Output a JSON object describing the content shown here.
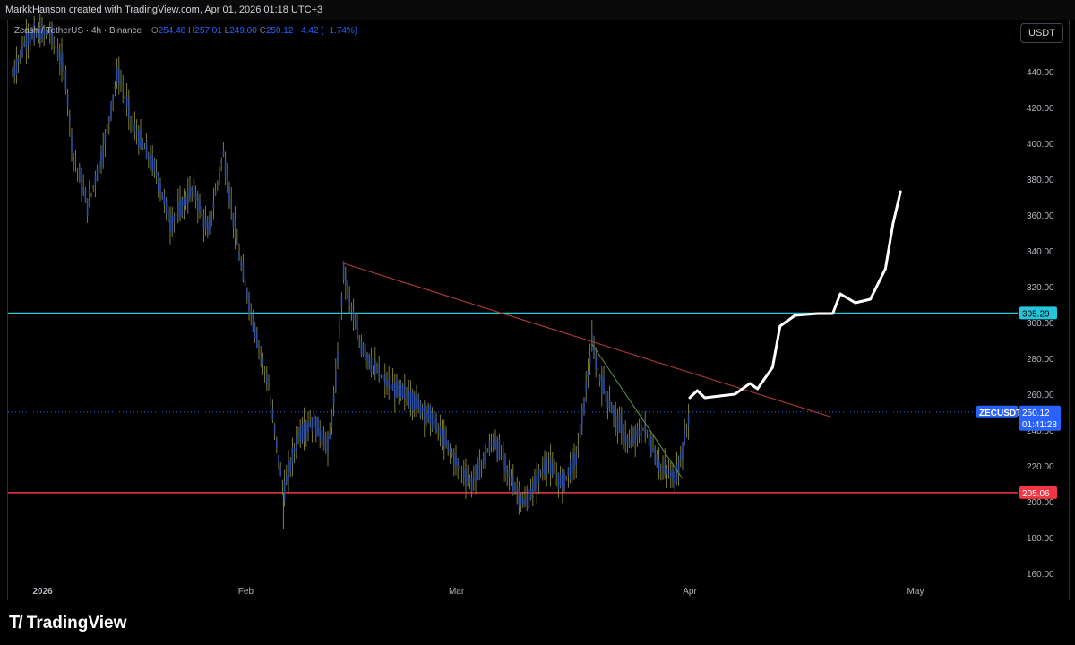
{
  "header": {
    "author_line": "MarkkHanson created with TradingView.com, Apr 01, 2026 01:18 UTC+3"
  },
  "legend": {
    "symbol": "Zcash / TetherUS · 4h · Binance",
    "open_label": "O",
    "open": "254.48",
    "high_label": "H",
    "high": "257.01",
    "low_label": "L",
    "low": "249.00",
    "close_label": "C",
    "close": "250.12",
    "change": "−4.42 (−1.74%)"
  },
  "currency_button": "USDT",
  "symbol_tag": "ZECUSDT",
  "price_tag": {
    "price": "250.12",
    "countdown": "01:41:28"
  },
  "logo_text": "TradingView",
  "colors": {
    "candle": "#2f4f9e",
    "wick": "#8a8a3a",
    "cyan_line": "#26c6da",
    "red_line": "#f23645",
    "trend_red": "#b03a3a",
    "trend_green": "#5a8f3a",
    "projection": "#ffffff"
  },
  "chart_data": {
    "type": "candlestick",
    "title": "Zcash / TetherUS · 4h · Binance",
    "y_ticks": [
      160,
      180,
      200,
      220,
      240,
      260,
      280,
      300,
      320,
      340,
      360,
      380,
      400,
      420,
      440
    ],
    "x_ticks": [
      "2026",
      "Feb",
      "Mar",
      "Apr",
      "May"
    ],
    "ylim": [
      150,
      460
    ],
    "horizontal_lines": [
      {
        "value": 305.29,
        "label": "305.29",
        "color": "#26c6da"
      },
      {
        "value": 205.06,
        "label": "205.06",
        "color": "#f23645"
      }
    ],
    "last_price": 250.12,
    "trendlines": [
      {
        "color": "#b03a3a",
        "from": [
          "2026-02-14",
          333
        ],
        "to": [
          "2026-04-20",
          247
        ]
      },
      {
        "color": "#5a8f3a",
        "from": [
          "2026-03-19",
          288
        ],
        "to": [
          "2026-03-31",
          213
        ]
      }
    ],
    "price_path": [
      [
        "2026-01-01",
        438
      ],
      [
        "2026-01-03",
        460
      ],
      [
        "2026-01-06",
        462
      ],
      [
        "2026-01-08",
        440
      ],
      [
        "2026-01-09",
        395
      ],
      [
        "2026-01-11",
        365
      ],
      [
        "2026-01-13",
        395
      ],
      [
        "2026-01-15",
        440
      ],
      [
        "2026-01-17",
        410
      ],
      [
        "2026-01-20",
        385
      ],
      [
        "2026-01-22",
        355
      ],
      [
        "2026-01-25",
        375
      ],
      [
        "2026-01-27",
        350
      ],
      [
        "2026-01-29",
        395
      ],
      [
        "2026-01-31",
        340
      ],
      [
        "2026-02-02",
        300
      ],
      [
        "2026-02-04",
        265
      ],
      [
        "2026-02-05",
        235
      ],
      [
        "2026-02-06",
        205
      ],
      [
        "2026-02-08",
        238
      ],
      [
        "2026-02-10",
        245
      ],
      [
        "2026-02-12",
        230
      ],
      [
        "2026-02-13",
        268
      ],
      [
        "2026-02-14",
        328
      ],
      [
        "2026-02-16",
        290
      ],
      [
        "2026-02-18",
        275
      ],
      [
        "2026-02-20",
        265
      ],
      [
        "2026-02-23",
        258
      ],
      [
        "2026-02-26",
        245
      ],
      [
        "2026-03-01",
        222
      ],
      [
        "2026-03-03",
        210
      ],
      [
        "2026-03-06",
        235
      ],
      [
        "2026-03-08",
        215
      ],
      [
        "2026-03-10",
        198
      ],
      [
        "2026-03-13",
        222
      ],
      [
        "2026-03-15",
        210
      ],
      [
        "2026-03-17",
        225
      ],
      [
        "2026-03-19",
        288
      ],
      [
        "2026-03-20",
        270
      ],
      [
        "2026-03-22",
        248
      ],
      [
        "2026-03-24",
        232
      ],
      [
        "2026-03-26",
        242
      ],
      [
        "2026-03-28",
        220
      ],
      [
        "2026-03-30",
        213
      ],
      [
        "2026-03-31",
        228
      ],
      [
        "2026-04-01",
        250
      ]
    ],
    "projection_path": [
      [
        "2026-04-01",
        258
      ],
      [
        "2026-04-02",
        262
      ],
      [
        "2026-04-03",
        258
      ],
      [
        "2026-04-05",
        259
      ],
      [
        "2026-04-07",
        260
      ],
      [
        "2026-04-09",
        266
      ],
      [
        "2026-04-10",
        263
      ],
      [
        "2026-04-12",
        275
      ],
      [
        "2026-04-13",
        298
      ],
      [
        "2026-04-15",
        304
      ],
      [
        "2026-04-18",
        305
      ],
      [
        "2026-04-20",
        305
      ],
      [
        "2026-04-21",
        316
      ],
      [
        "2026-04-23",
        311
      ],
      [
        "2026-04-25",
        313
      ],
      [
        "2026-04-27",
        330
      ],
      [
        "2026-04-28",
        355
      ],
      [
        "2026-04-29",
        373
      ]
    ]
  }
}
